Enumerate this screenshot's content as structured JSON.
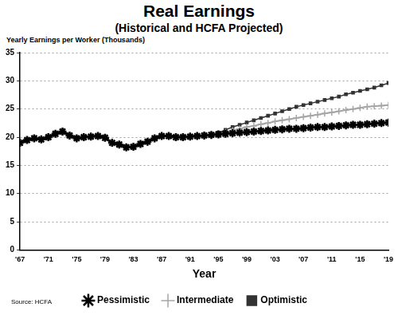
{
  "chart_data": {
    "type": "line",
    "title": "Real Earnings",
    "subtitle": "(Historical and HCFA Projected)",
    "y_label": "Yearly Earnings per Worker (Thousands)",
    "x_label": "Year",
    "source": "Source: HCFA",
    "x": [
      1967,
      1968,
      1969,
      1970,
      1971,
      1972,
      1973,
      1974,
      1975,
      1976,
      1977,
      1978,
      1979,
      1980,
      1981,
      1982,
      1983,
      1984,
      1985,
      1986,
      1987,
      1988,
      1989,
      1990,
      1991,
      1992,
      1993,
      1994,
      1995,
      1996,
      1997,
      1998,
      1999,
      2000,
      2001,
      2002,
      2003,
      2004,
      2005,
      2006,
      2007,
      2008,
      2009,
      2010,
      2011,
      2012,
      2013,
      2014,
      2015,
      2016,
      2017,
      2018,
      2019
    ],
    "series": [
      {
        "name": "Optimistic",
        "color": "#333333",
        "marker": "square",
        "line_style": "solid",
        "values": [
          null,
          null,
          null,
          null,
          null,
          null,
          null,
          null,
          null,
          null,
          null,
          null,
          null,
          null,
          null,
          null,
          null,
          null,
          null,
          null,
          null,
          null,
          null,
          null,
          null,
          null,
          null,
          20.4,
          20.8,
          21.3,
          21.8,
          22.2,
          22.6,
          23.0,
          23.4,
          23.8,
          24.2,
          24.6,
          25.0,
          25.4,
          25.7,
          26.0,
          26.3,
          26.6,
          26.9,
          27.2,
          27.6,
          27.9,
          28.2,
          28.5,
          28.8,
          29.2,
          29.6
        ]
      },
      {
        "name": "Intermediate",
        "color": "#a6a6a6",
        "marker": "cross",
        "line_style": "solid",
        "values": [
          null,
          null,
          null,
          null,
          null,
          null,
          null,
          null,
          null,
          null,
          null,
          null,
          null,
          null,
          null,
          null,
          null,
          null,
          null,
          null,
          null,
          null,
          null,
          null,
          null,
          null,
          null,
          20.4,
          20.6,
          20.9,
          21.2,
          21.5,
          21.8,
          22.0,
          22.3,
          22.5,
          22.8,
          23.0,
          23.2,
          23.4,
          23.6,
          23.8,
          24.0,
          24.2,
          24.4,
          24.6,
          24.8,
          25.0,
          25.2,
          25.4,
          25.5,
          25.6,
          25.7
        ]
      },
      {
        "name": "Pessimistic",
        "color": "#000000",
        "marker": "star",
        "line_style": "solid",
        "values": [
          19.0,
          19.5,
          19.8,
          19.6,
          20.0,
          20.6,
          21.0,
          20.3,
          19.8,
          20.0,
          20.1,
          20.2,
          19.9,
          19.0,
          18.7,
          18.2,
          18.3,
          18.8,
          19.2,
          19.8,
          20.2,
          20.2,
          20.0,
          20.0,
          20.1,
          20.2,
          20.3,
          20.4,
          20.5,
          20.6,
          20.7,
          20.8,
          20.9,
          21.0,
          21.1,
          21.2,
          21.3,
          21.4,
          21.5,
          21.5,
          21.6,
          21.7,
          21.8,
          21.8,
          21.9,
          22.0,
          22.1,
          22.2,
          22.2,
          22.3,
          22.4,
          22.5,
          22.6
        ]
      }
    ],
    "xlim": [
      1967,
      2019
    ],
    "xticks": [
      {
        "value": 1967,
        "label": "'67"
      },
      {
        "value": 1971,
        "label": "'71"
      },
      {
        "value": 1975,
        "label": "'75"
      },
      {
        "value": 1979,
        "label": "'79"
      },
      {
        "value": 1983,
        "label": "'83"
      },
      {
        "value": 1987,
        "label": "'87"
      },
      {
        "value": 1991,
        "label": "'91"
      },
      {
        "value": 1995,
        "label": "'95"
      },
      {
        "value": 1999,
        "label": "'99"
      },
      {
        "value": 2003,
        "label": "'03"
      },
      {
        "value": 2007,
        "label": "'07"
      },
      {
        "value": 2011,
        "label": "'11"
      },
      {
        "value": 2015,
        "label": "'15"
      },
      {
        "value": 2019,
        "label": "'19"
      }
    ],
    "ylim": [
      0,
      35
    ],
    "yticks": [
      0,
      5,
      10,
      15,
      20,
      25,
      30,
      35
    ],
    "grid": true,
    "legend": "bottom"
  }
}
